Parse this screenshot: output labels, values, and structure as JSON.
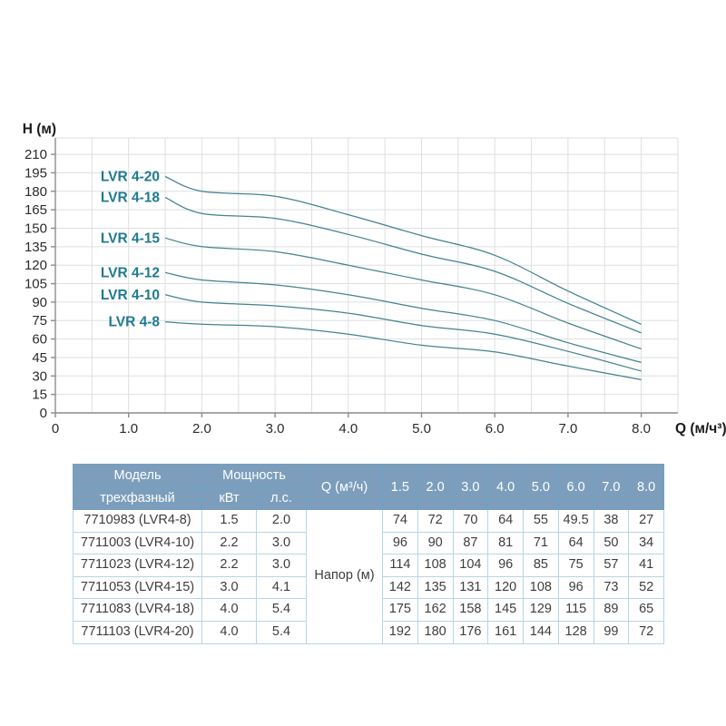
{
  "chart_data": {
    "type": "line",
    "title": "",
    "xlabel": "Q (м/ч³)",
    "ylabel": "H (м)",
    "x": [
      1.5,
      2.0,
      3.0,
      4.0,
      5.0,
      6.0,
      7.0,
      8.0
    ],
    "series": [
      {
        "name": "LVR 4-20",
        "values": [
          192,
          180,
          176,
          161,
          144,
          128,
          99,
          72
        ]
      },
      {
        "name": "LVR 4-18",
        "values": [
          175,
          162,
          158,
          145,
          129,
          115,
          89,
          65
        ]
      },
      {
        "name": "LVR 4-15",
        "values": [
          142,
          135,
          131,
          120,
          108,
          96,
          73,
          52
        ]
      },
      {
        "name": "LVR 4-12",
        "values": [
          114,
          108,
          104,
          96,
          85,
          75,
          57,
          41
        ]
      },
      {
        "name": "LVR 4-10",
        "values": [
          96,
          90,
          87,
          81,
          71,
          64,
          50,
          34
        ]
      },
      {
        "name": "LVR 4-8",
        "values": [
          74,
          72,
          70,
          64,
          55,
          49.5,
          38,
          27
        ]
      }
    ],
    "x_tick_labels": [
      "0",
      "1.0",
      "2.0",
      "3.0",
      "4.0",
      "5.0",
      "6.0",
      "7.0",
      "8.0"
    ],
    "y_tick_labels": [
      "0",
      "15",
      "30",
      "45",
      "60",
      "75",
      "90",
      "105",
      "120",
      "135",
      "150",
      "165",
      "180",
      "195",
      "210"
    ],
    "xlim": [
      0,
      8.5
    ],
    "ylim": [
      0,
      223
    ],
    "grid": true,
    "legend_position": "labels-at-curve-start",
    "line_color": "#44828f",
    "curve_label_color": "#1e7a90",
    "axis_color": "#8c8c8c",
    "grid_color": "#dddfe0",
    "tick_text_color": "#2b2b2b"
  },
  "table": {
    "row_group_label": "Напор (м)",
    "header": {
      "model": "Модель",
      "model_sub": "трехфазный",
      "power": "Мощность",
      "power_kw": "кВт",
      "power_hp": "л.с.",
      "q": "Q (м³/ч)",
      "q_values": [
        "1.5",
        "2.0",
        "3.0",
        "4.0",
        "5.0",
        "6.0",
        "7.0",
        "8.0"
      ]
    },
    "rows": [
      {
        "model": "7710983 (LVR4-8)",
        "kw": "1.5",
        "hp": "2.0",
        "head": [
          "74",
          "72",
          "70",
          "64",
          "55",
          "49.5",
          "38",
          "27"
        ]
      },
      {
        "model": "7711003 (LVR4-10)",
        "kw": "2.2",
        "hp": "3.0",
        "head": [
          "96",
          "90",
          "87",
          "81",
          "71",
          "64",
          "50",
          "34"
        ]
      },
      {
        "model": "7711023 (LVR4-12)",
        "kw": "2.2",
        "hp": "3.0",
        "head": [
          "114",
          "108",
          "104",
          "96",
          "85",
          "75",
          "57",
          "41"
        ]
      },
      {
        "model": "7711053 (LVR4-15)",
        "kw": "3.0",
        "hp": "4.1",
        "head": [
          "142",
          "135",
          "131",
          "120",
          "108",
          "96",
          "73",
          "52"
        ]
      },
      {
        "model": "7711083 (LVR4-18)",
        "kw": "4.0",
        "hp": "5.4",
        "head": [
          "175",
          "162",
          "158",
          "145",
          "129",
          "115",
          "89",
          "65"
        ]
      },
      {
        "model": "7711103 (LVR4-20)",
        "kw": "4.0",
        "hp": "5.4",
        "head": [
          "192",
          "180",
          "176",
          "161",
          "144",
          "128",
          "99",
          "72"
        ]
      }
    ],
    "colors": {
      "header_bg": "#7c9ebc",
      "header_border": "#6fa0c4",
      "header_text": "#ffffff",
      "body_border": "#b5d6e2",
      "body_text": "#3d3d3d"
    }
  }
}
